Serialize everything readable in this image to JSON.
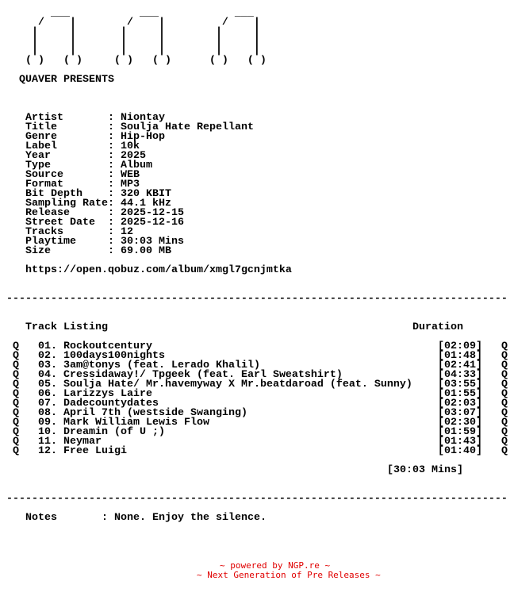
{
  "art": "\n        ___           ___            ___\n      /    |        /    |         /    |\n     |     |       |     |        |     |\n     |     |       |     |        |     |\n     |     |       |     |        |     |\n    ( )   ( )     ( )   ( )      ( )   ( )",
  "presenter": "QUAVER PRESENTS",
  "info": [
    {
      "label": "Artist",
      "value": "Niontay"
    },
    {
      "label": "Title",
      "value": "Soulja Hate Repellant"
    },
    {
      "label": "Genre",
      "value": "Hip-Hop"
    },
    {
      "label": "Label",
      "value": "10k"
    },
    {
      "label": "Year",
      "value": "2025"
    },
    {
      "label": "Type",
      "value": "Album"
    },
    {
      "label": "Source",
      "value": "WEB"
    },
    {
      "label": "Format",
      "value": "MP3"
    },
    {
      "label": "Bit Depth",
      "value": "320 KBIT"
    },
    {
      "label": "Sampling Rate",
      "value": "44.1 kHz"
    },
    {
      "label": "Release",
      "value": "2025-12-15"
    },
    {
      "label": "Street Date",
      "value": "2025-12-16"
    },
    {
      "label": "Tracks",
      "value": "12"
    },
    {
      "label": "Playtime",
      "value": "30:03 Mins"
    },
    {
      "label": "Size",
      "value": "69.00 MB"
    }
  ],
  "url": "https://open.qobuz.com/album/xmgl7gcnjmtka",
  "separator": "-------------------------------------------------------------------------------",
  "tracklist": {
    "heading": "Track Listing",
    "duration_heading": "Duration",
    "marker": "Q",
    "tracks": [
      {
        "num": "01.",
        "title": "Rockoutcentury",
        "duration": "[02:09]"
      },
      {
        "num": "02.",
        "title": "100days100nights",
        "duration": "[01:48]"
      },
      {
        "num": "03.",
        "title": "3am@tonys (feat. Lerado Khalil)",
        "duration": "[02:41]"
      },
      {
        "num": "04.",
        "title": "Cressidaway!/ Tpgeek (feat. Earl Sweatshirt)",
        "duration": "[04:33]"
      },
      {
        "num": "05.",
        "title": "Soulja Hate/ Mr.havemyway X Mr.beatdaroad (feat. Sunny)",
        "duration": "[03:55]"
      },
      {
        "num": "06.",
        "title": "Larizzys Laire",
        "duration": "[01:55]"
      },
      {
        "num": "07.",
        "title": "Dadecountydates",
        "duration": "[02:03]"
      },
      {
        "num": "08.",
        "title": "April 7th (westside Swanging)",
        "duration": "[03:07]"
      },
      {
        "num": "09.",
        "title": "Mark William Lewis Flow",
        "duration": "[02:30]"
      },
      {
        "num": "10.",
        "title": "Dreamin (of U ;)",
        "duration": "[01:59]"
      },
      {
        "num": "11.",
        "title": "Neymar",
        "duration": "[01:43]"
      },
      {
        "num": "12.",
        "title": "Free Luigi",
        "duration": "[01:40]"
      }
    ],
    "total": "[30:03 Mins]"
  },
  "notes": {
    "label": "Notes",
    "value": "None. Enjoy the silence."
  },
  "footer": {
    "line1": "~ powered by NGP.re ~",
    "line2": "~ Next Generation of Pre Releases ~",
    "color": "#e00000"
  }
}
